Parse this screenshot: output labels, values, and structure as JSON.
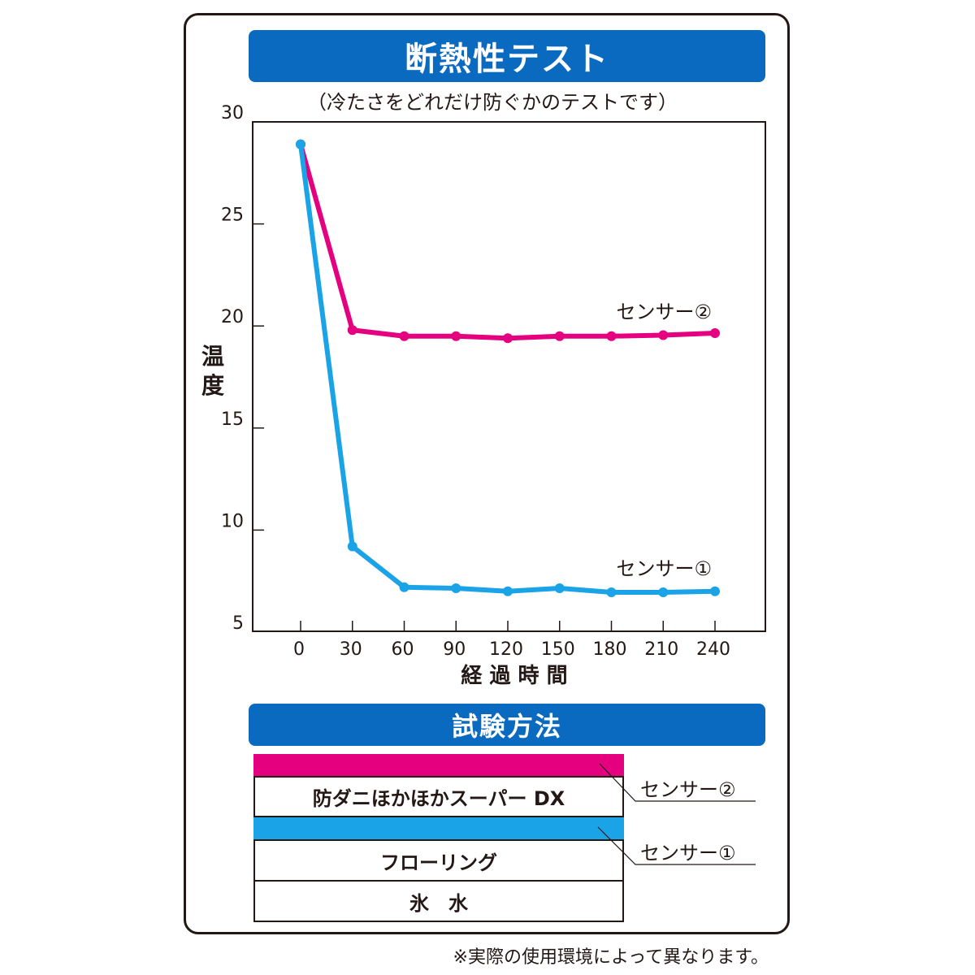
{
  "title": "断熱性テスト",
  "subtitle": "（冷たさをどれだけ防ぐかのテストです）",
  "chart_data": {
    "type": "line",
    "x": [
      0,
      30,
      60,
      90,
      120,
      150,
      180,
      210,
      240
    ],
    "xlabel": "経 過 時 間",
    "ylabel": "温度",
    "xlim": [
      0,
      240
    ],
    "ylim": [
      5,
      30
    ],
    "yticks": [
      5,
      10,
      15,
      20,
      25,
      30
    ],
    "grid": false,
    "series": [
      {
        "name": "センサー②",
        "color": "#e4007f",
        "values": [
          28.9,
          19.8,
          19.5,
          19.5,
          19.4,
          19.5,
          19.5,
          19.55,
          19.65
        ]
      },
      {
        "name": "センサー①",
        "color": "#1aa3e6",
        "values": [
          28.9,
          9.2,
          7.2,
          7.15,
          7.0,
          7.15,
          6.95,
          6.95,
          7.0
        ]
      }
    ]
  },
  "method": {
    "title": "試験方法",
    "layers": [
      "防ダニほかほかスーパー DX",
      "フローリング",
      "氷　水"
    ],
    "sensor2_label": "センサー②",
    "sensor1_label": "センサー①"
  },
  "footnote": "※実際の使用環境によって異なります。",
  "colors": {
    "banner": "#0a6abf",
    "sensor2": "#e4007f",
    "sensor1": "#1aa3e6",
    "ink": "#231815"
  }
}
